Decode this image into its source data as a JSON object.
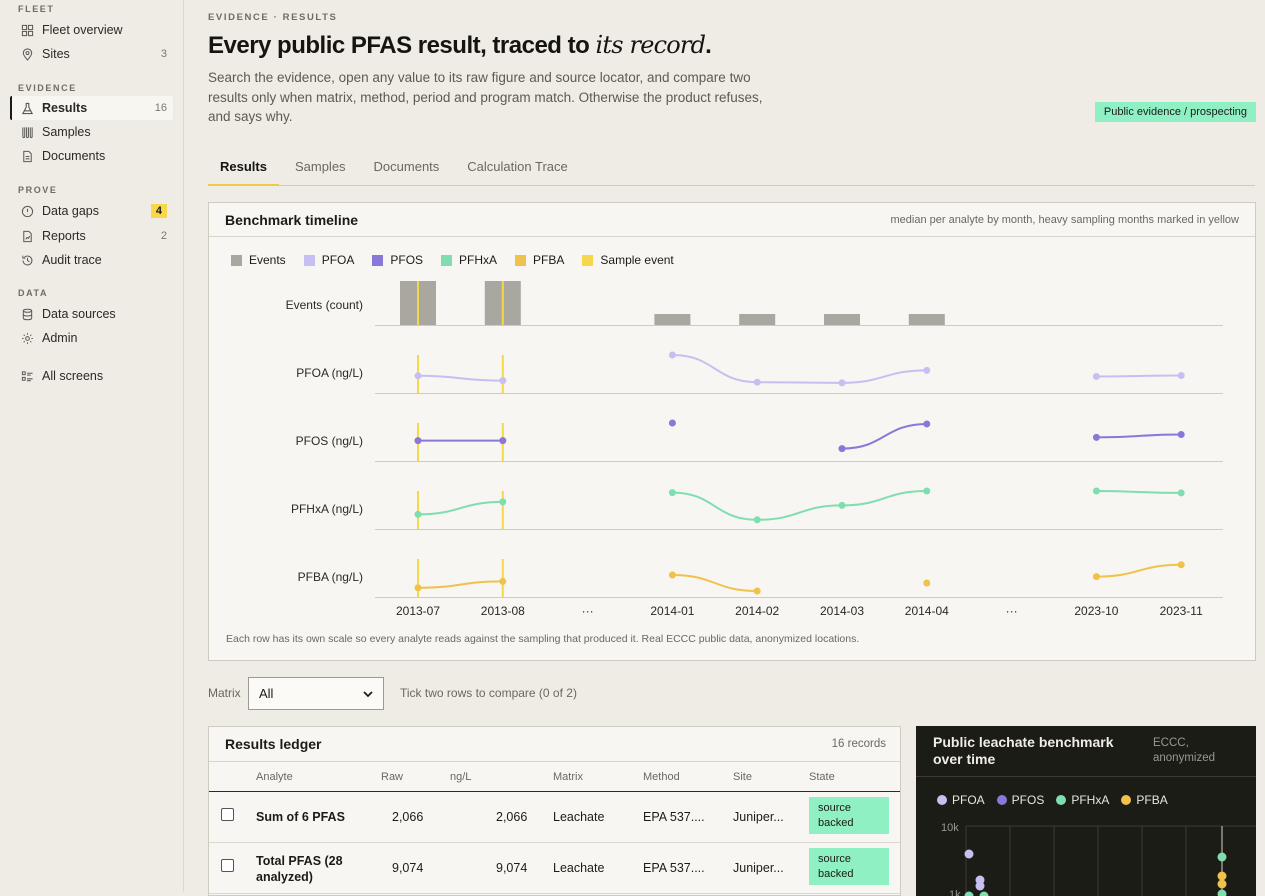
{
  "nav": {
    "fleet_label": "FLEET",
    "fleet": [
      {
        "label": "Fleet overview",
        "icon": "grid-icon",
        "count": ""
      },
      {
        "label": "Sites",
        "icon": "pin-icon",
        "count": "3"
      }
    ],
    "evidence_label": "EVIDENCE",
    "evidence": [
      {
        "label": "Results",
        "icon": "flask-icon",
        "count": "16"
      },
      {
        "label": "Samples",
        "icon": "vials-icon",
        "count": ""
      },
      {
        "label": "Documents",
        "icon": "document-icon",
        "count": ""
      }
    ],
    "prove_label": "PROVE",
    "prove": [
      {
        "label": "Data gaps",
        "icon": "alert-circle-icon",
        "count": "4"
      },
      {
        "label": "Reports",
        "icon": "report-icon",
        "count": "2"
      },
      {
        "label": "Audit trace",
        "icon": "history-icon",
        "count": ""
      }
    ],
    "data_label": "DATA",
    "data": [
      {
        "label": "Data sources",
        "icon": "database-icon",
        "count": ""
      },
      {
        "label": "Admin",
        "icon": "gear-icon",
        "count": ""
      }
    ],
    "all_screens": {
      "label": "All screens",
      "icon": "list-icon"
    }
  },
  "header": {
    "eyebrow": "EVIDENCE · RESULTS",
    "title_main": "Every public PFAS result, traced to ",
    "title_em": "its record",
    "title_end": ".",
    "subtitle": "Search the evidence, open any value to its raw figure and source locator, and compare two results only when matrix, method, period and program match. Otherwise the product refuses, and says why.",
    "badge": "Public evidence / prospecting"
  },
  "tabs": [
    "Results",
    "Samples",
    "Documents",
    "Calculation Trace"
  ],
  "benchmark": {
    "title": "Benchmark timeline",
    "note": "median per analyte by month, heavy sampling months marked in yellow",
    "footnote": "Each row has its own scale so every analyte reads against the sampling that produced it. Real ECCC public data, anonymized locations.",
    "legend": [
      {
        "label": "Events",
        "color": "#a9a7a0"
      },
      {
        "label": "PFOA",
        "color": "#c7bff2"
      },
      {
        "label": "PFOS",
        "color": "#8a78d8"
      },
      {
        "label": "PFHxA",
        "color": "#7fdeb0"
      },
      {
        "label": "PFBA",
        "color": "#f0c24b"
      },
      {
        "label": "Sample event",
        "color": "#f5d84a"
      }
    ],
    "colors": {
      "events": "#a9a7a0",
      "sample_event": "#f5d84a",
      "PFOA": "#c7bff2",
      "PFOS": "#8a78d8",
      "PFHxA": "#7fdeb0",
      "PFBA": "#f0c24b"
    }
  },
  "chart_data": {
    "type": "line",
    "title": "Benchmark timeline",
    "subtitle": "median per analyte by month, heavy sampling months marked in yellow",
    "categories": [
      "2013-07",
      "2013-08",
      "···",
      "2014-01",
      "2014-02",
      "2014-03",
      "2014-04",
      "···",
      "2023-10",
      "2023-11"
    ],
    "heavy_sampling": [
      "2013-07",
      "2013-08"
    ],
    "rows": [
      {
        "name": "Events",
        "label": "Events (count)",
        "kind": "bar",
        "values": [
          4,
          4,
          null,
          1,
          1,
          1,
          1,
          null,
          null,
          null
        ],
        "ylim": [
          0,
          4
        ]
      },
      {
        "name": "PFOA",
        "label": "PFOA (ng/L)",
        "kind": "line",
        "values": [
          0.35,
          0.2,
          null,
          1.0,
          0.15,
          0.13,
          0.52,
          null,
          0.33,
          0.36
        ],
        "ylim": [
          0,
          1
        ]
      },
      {
        "name": "PFOS",
        "label": "PFOS (ng/L)",
        "kind": "line",
        "values": [
          0.45,
          0.45,
          null,
          1.0,
          null,
          0.2,
          0.97,
          null,
          0.55,
          0.64
        ],
        "ylim": [
          0,
          1
        ]
      },
      {
        "name": "PFHxA",
        "label": "PFHxA (ng/L)",
        "kind": "line",
        "values": [
          0.27,
          0.66,
          null,
          0.95,
          0.1,
          0.55,
          1.0,
          null,
          1.0,
          0.94
        ],
        "ylim": [
          0,
          1
        ]
      },
      {
        "name": "PFBA",
        "label": "PFBA (ng/L)",
        "kind": "line",
        "values": [
          0.1,
          0.3,
          null,
          0.5,
          0.0,
          null,
          0.25,
          null,
          0.45,
          0.82
        ],
        "ylim": [
          0,
          1
        ]
      }
    ]
  },
  "filters": {
    "matrix_label": "Matrix",
    "matrix_value": "All",
    "compare_hint": "Tick two rows to compare (0 of 2)"
  },
  "ledger": {
    "title": "Results ledger",
    "count": "16 records",
    "columns": [
      "Analyte",
      "Raw",
      "ng/L",
      "Matrix",
      "Method",
      "Site",
      "State"
    ],
    "rows": [
      {
        "analyte": "Sum of 6 PFAS",
        "raw": "2,066",
        "ngl": "2,066",
        "matrix": "Leachate",
        "method": "EPA 537....",
        "site": "Juniper...",
        "state": "source backed"
      },
      {
        "analyte": "Total PFAS (28 analyzed)",
        "raw": "9,074",
        "ngl": "9,074",
        "matrix": "Leachate",
        "method": "EPA 537....",
        "site": "Juniper...",
        "state": "source backed"
      }
    ]
  },
  "leachate": {
    "title": "Public leachate benchmark over time",
    "note": "ECCC, anonymized",
    "legend": [
      "PFOA",
      "PFOS",
      "PFHxA",
      "PFBA"
    ],
    "y_tick": "10k",
    "y_tick_partial": "1k"
  }
}
